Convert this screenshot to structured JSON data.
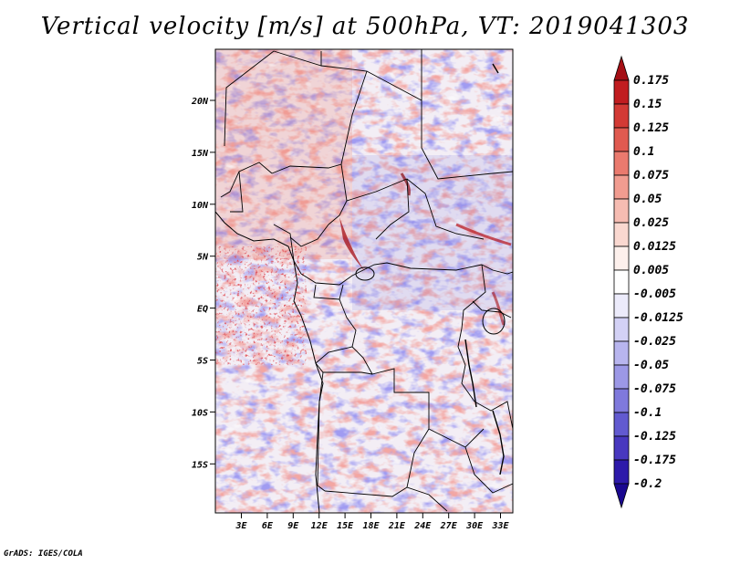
{
  "title": "Vertical velocity [m/s] at 500hPa, VT: 2019041303",
  "credit": "GrADS: IGES/COLA",
  "lat_labels": [
    "20N",
    "15N",
    "10N",
    "5N",
    "EQ",
    "5S",
    "10S",
    "15S"
  ],
  "lon_labels": [
    "3E",
    "6E",
    "9E",
    "12E",
    "15E",
    "18E",
    "21E",
    "24E",
    "27E",
    "30E",
    "33E"
  ],
  "colorbar": {
    "labels": [
      "0.175",
      "0.15",
      "0.125",
      "0.1",
      "0.075",
      "0.05",
      "0.025",
      "0.0125",
      "0.005",
      "-0.005",
      "-0.0125",
      "-0.025",
      "-0.05",
      "-0.075",
      "-0.1",
      "-0.125",
      "-0.175",
      "-0.2"
    ],
    "colors": [
      "#a50f15",
      "#c11d20",
      "#d33a35",
      "#e05a50",
      "#ea7a6e",
      "#f19c90",
      "#f6bcb2",
      "#fad8d0",
      "#fdf0ec",
      "#ffffff",
      "#ecebfb",
      "#d3d1f5",
      "#b8b5ee",
      "#9c98e6",
      "#7f79dc",
      "#625ad0",
      "#4838bf",
      "#2d1aaa",
      "#1a0890"
    ]
  },
  "colors": {
    "background": "#ffffff",
    "positive_accent": "#c81e1e",
    "negative_accent": "#3c2dc8",
    "border": "#000000"
  }
}
